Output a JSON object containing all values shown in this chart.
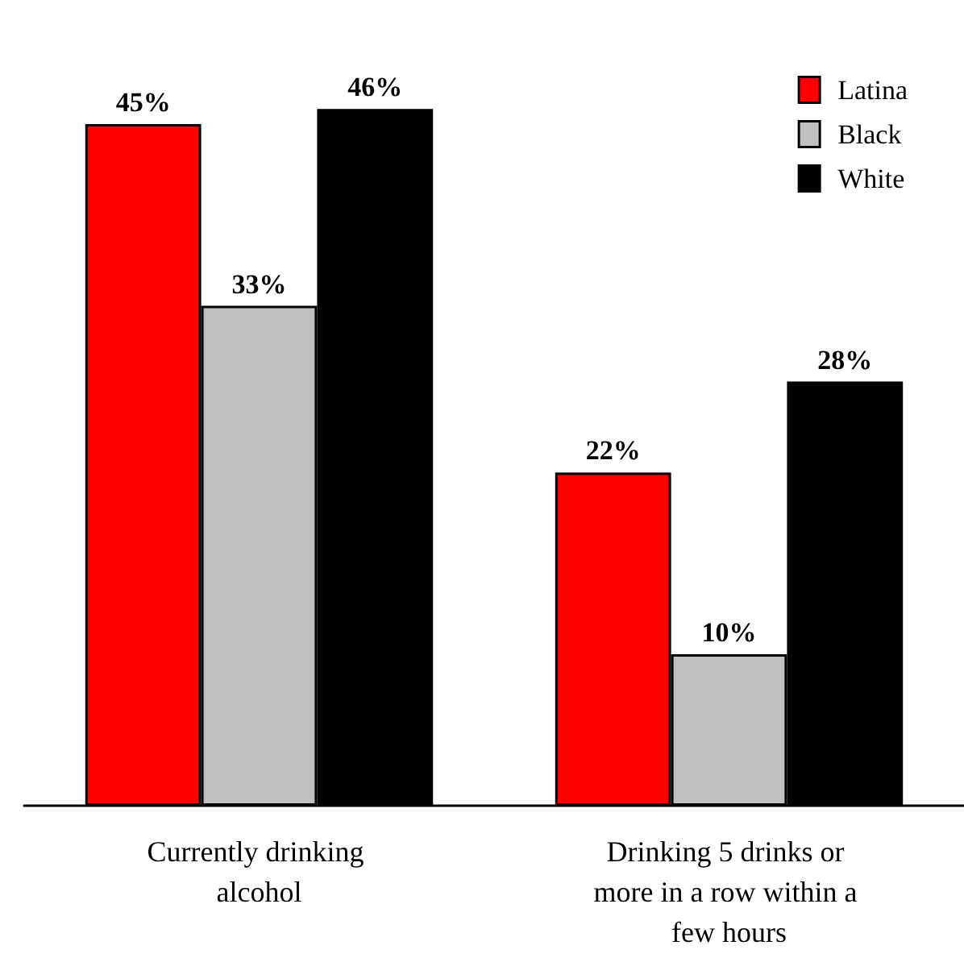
{
  "chart_data": {
    "type": "bar",
    "categories": [
      "Currently drinking alcohol",
      "Drinking 5 drinks or more in a row within a few hours"
    ],
    "series": [
      {
        "name": "Latina",
        "color": "#ff0000",
        "values": [
          45,
          22
        ],
        "value_labels": [
          "45%",
          "22%"
        ]
      },
      {
        "name": "Black",
        "color": "#c0c0c0",
        "values": [
          33,
          10
        ],
        "value_labels": [
          "33%",
          "10%"
        ]
      },
      {
        "name": "White",
        "color": "#000000",
        "values": [
          46,
          28
        ],
        "value_labels": [
          "46%",
          "28%"
        ]
      }
    ],
    "legend": "top right",
    "tick_labels": "x"
  }
}
